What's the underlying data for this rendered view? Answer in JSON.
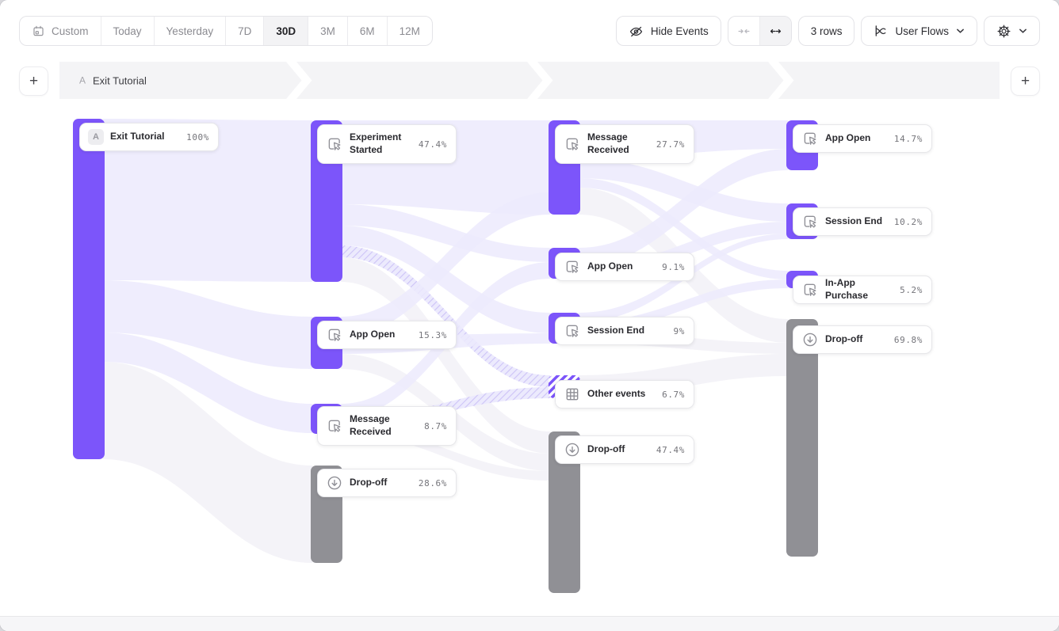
{
  "toolbar": {
    "date_ranges": [
      {
        "label": "Custom",
        "active": false,
        "icon": "calendar-icon"
      },
      {
        "label": "Today",
        "active": false
      },
      {
        "label": "Yesterday",
        "active": false
      },
      {
        "label": "7D",
        "active": false
      },
      {
        "label": "30D",
        "active": true
      },
      {
        "label": "3M",
        "active": false
      },
      {
        "label": "6M",
        "active": false
      },
      {
        "label": "12M",
        "active": false
      }
    ],
    "hide_events": {
      "label": "Hide Events",
      "icon": "eye-off-icon"
    },
    "width_controls": [
      {
        "icon": "collapse-horizontal-icon",
        "active": false
      },
      {
        "icon": "expand-horizontal-icon",
        "active": true
      }
    ],
    "rows": {
      "label": "3 rows"
    },
    "view_selector": {
      "label": "User Flows",
      "icon": "flows-chart-icon"
    },
    "settings": {
      "icon": "gear-icon"
    }
  },
  "steps_bar": {
    "add_label": "+",
    "start_step": {
      "prefix": "A",
      "label": "Exit Tutorial"
    }
  },
  "flow": {
    "columns": [
      {
        "nodes": [
          {
            "type": "event",
            "badge": "A",
            "label": "Exit Tutorial",
            "value": "100%"
          }
        ]
      },
      {
        "nodes": [
          {
            "type": "event",
            "label": "Experiment Started",
            "value": "47.4%"
          },
          {
            "type": "event",
            "label": "App Open",
            "value": "15.3%"
          },
          {
            "type": "event",
            "label": "Message Received",
            "value": "8.7%"
          },
          {
            "type": "dropoff",
            "label": "Drop-off",
            "value": "28.6%"
          }
        ]
      },
      {
        "nodes": [
          {
            "type": "event",
            "label": "Message Received",
            "value": "27.7%"
          },
          {
            "type": "event",
            "label": "App Open",
            "value": "9.1%"
          },
          {
            "type": "event",
            "label": "Session End",
            "value": "9%"
          },
          {
            "type": "other",
            "label": "Other events",
            "value": "6.7%"
          },
          {
            "type": "dropoff",
            "label": "Drop-off",
            "value": "47.4%"
          }
        ]
      },
      {
        "nodes": [
          {
            "type": "event",
            "label": "App Open",
            "value": "14.7%"
          },
          {
            "type": "event",
            "label": "Session End",
            "value": "10.2%"
          },
          {
            "type": "event",
            "label": "In-App Purchase",
            "value": "5.2%"
          },
          {
            "type": "dropoff",
            "label": "Drop-off",
            "value": "69.8%"
          }
        ]
      }
    ]
  },
  "colors": {
    "accent": "#7c55fa",
    "flow_ribbon": "#eceafd",
    "flow_ribbon_hatch": "#cdc3f7",
    "dropoff_bar": "#909095",
    "dropoff_ribbon": "#f4f3f8"
  }
}
